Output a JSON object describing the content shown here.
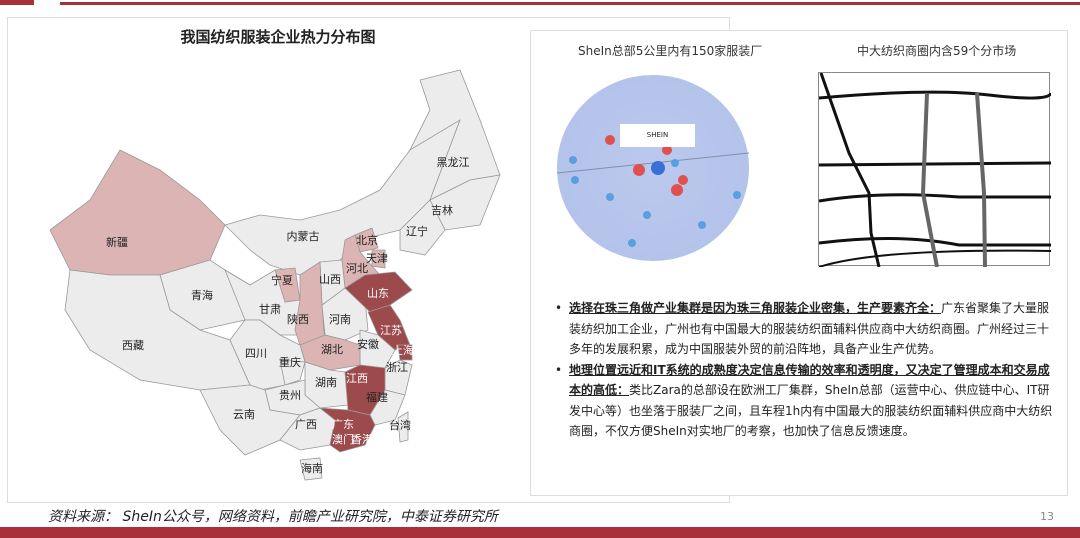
{
  "header": {
    "map_title": "我国纺织服装企业热力分布图"
  },
  "map": {
    "colors": {
      "high": "#9c4a4c",
      "medium": "#dcb4b4",
      "low": "#ececec",
      "border": "#999999"
    },
    "provinces": [
      {
        "name": "新疆",
        "level": "medium"
      },
      {
        "name": "青海",
        "level": "low"
      },
      {
        "name": "西藏",
        "level": "low"
      },
      {
        "name": "内蒙古",
        "level": "low"
      },
      {
        "name": "黑龙江",
        "level": "low"
      },
      {
        "name": "吉林",
        "level": "low"
      },
      {
        "name": "辽宁",
        "level": "low"
      },
      {
        "name": "北京",
        "level": "medium"
      },
      {
        "name": "天津",
        "level": "medium"
      },
      {
        "name": "河北",
        "level": "medium"
      },
      {
        "name": "山西",
        "level": "low"
      },
      {
        "name": "宁夏",
        "level": "medium"
      },
      {
        "name": "甘肃",
        "level": "low"
      },
      {
        "name": "陕西",
        "level": "medium"
      },
      {
        "name": "河南",
        "level": "low"
      },
      {
        "name": "山东",
        "level": "high"
      },
      {
        "name": "江苏",
        "level": "high"
      },
      {
        "name": "上海",
        "level": "high"
      },
      {
        "name": "安徽",
        "level": "low"
      },
      {
        "name": "湖北",
        "level": "medium"
      },
      {
        "name": "四川",
        "level": "low"
      },
      {
        "name": "重庆",
        "level": "low"
      },
      {
        "name": "浙江",
        "level": "low"
      },
      {
        "name": "湖南",
        "level": "low"
      },
      {
        "name": "江西",
        "level": "high"
      },
      {
        "name": "贵州",
        "level": "low"
      },
      {
        "name": "福建",
        "level": "low"
      },
      {
        "name": "云南",
        "level": "low"
      },
      {
        "name": "广西",
        "level": "low"
      },
      {
        "name": "广东",
        "level": "high"
      },
      {
        "name": "澳门",
        "level": "high"
      },
      {
        "name": "香港",
        "level": "high"
      },
      {
        "name": "台湾",
        "level": "low"
      },
      {
        "name": "海南",
        "level": "low"
      }
    ]
  },
  "right": {
    "caption_left": "SheIn总部5公里内有150家服装厂",
    "caption_right": "中大纺织商圈内含59个分市场",
    "map_label": "SHEIN",
    "bullets": [
      {
        "bold": "选择在珠三角做产业集群是因为珠三角服装企业密集，生产要素齐全：",
        "text": "广东省聚集了大量服装纺织加工企业，广州也有中国最大的服装纺织面辅料供应商中大纺织商圈。广州经过三十多年的发展积累，成为中国服装外贸的前沿阵地，具备产业生产优势。"
      },
      {
        "bold": "地理位置远近和IT系统的成熟度决定信息传输的效率和透明度，又决定了管理成本和交易成本的高低：",
        "text": "类比Zara的总部设在欧洲工厂集群，SheIn总部（运营中心、供应链中心、IT研发中心等）也坐落于服装厂之间，且车程1h内有中国最大的服装纺织面辅料供应商中大纺织商圈，不仅方便SheIn对实地厂的考察，也加快了信息反馈速度。"
      }
    ]
  },
  "footer": {
    "source": "资料来源： SheIn公众号，网络资料，前瞻产业研究院，中泰证券研究所",
    "page": "13"
  }
}
